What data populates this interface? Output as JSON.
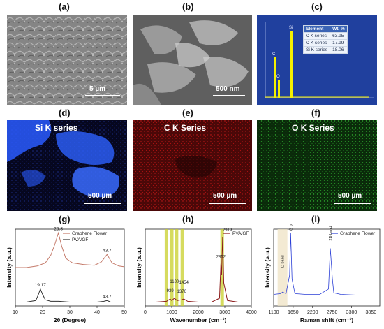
{
  "panels": {
    "a": "(a)",
    "b": "(b)",
    "c": "(c)",
    "d": "(d)",
    "e": "(e)",
    "f": "(f)",
    "g": "(g)",
    "h": "(h)",
    "i": "(i)"
  },
  "sem": {
    "a_scale": "5 µm",
    "b_scale": "500 nm"
  },
  "eds": {
    "headers": [
      "Element",
      "Wt. %"
    ],
    "rows": [
      {
        "element": "C K series",
        "wt": "63.95"
      },
      {
        "element": "O K series",
        "wt": "17.99"
      },
      {
        "element": "Si K series",
        "wt": "18.06"
      }
    ],
    "spectrum_peak_labels": [
      "C",
      "O",
      "Si"
    ]
  },
  "maps": {
    "d_title": "Si K series",
    "e_title": "C K Series",
    "f_title": "O K Series",
    "scale": "500 µm",
    "colors": {
      "d": "#2a5bff",
      "e": "#d11a1a",
      "f": "#2fae2f"
    }
  },
  "chart_data": [
    {
      "type": "line",
      "panel": "g",
      "xlabel": "2θ (Degree)",
      "ylabel": "Intensity (a.u.)",
      "xlim": [
        10,
        50
      ],
      "xticks": [
        10,
        20,
        30,
        40,
        50
      ],
      "series": [
        {
          "name": "Graphene Flower",
          "color": "#c47a6a",
          "x": [
            10,
            14,
            18,
            21,
            23,
            24.5,
            25.8,
            27,
            28.5,
            31,
            35,
            39,
            41.5,
            43.7,
            45.5,
            48,
            50
          ],
          "y": [
            0.5,
            0.5,
            0.52,
            0.56,
            0.66,
            0.8,
            0.95,
            0.78,
            0.62,
            0.56,
            0.54,
            0.53,
            0.57,
            0.67,
            0.56,
            0.52,
            0.51
          ]
        },
        {
          "name": "PVA/GF",
          "color": "#333333",
          "x": [
            10,
            14,
            17.5,
            18.5,
            19.17,
            20,
            21,
            23,
            26,
            30,
            35,
            40,
            42.5,
            43.7,
            45,
            50
          ],
          "y": [
            0.05,
            0.05,
            0.07,
            0.15,
            0.22,
            0.15,
            0.08,
            0.06,
            0.06,
            0.05,
            0.05,
            0.05,
            0.06,
            0.07,
            0.05,
            0.05
          ]
        }
      ],
      "annotations": [
        {
          "text": "25.8",
          "x": 25.8,
          "y": 0.95
        },
        {
          "text": "43.7",
          "x": 43.7,
          "y": 0.67
        },
        {
          "text": "19.17",
          "x": 19.17,
          "y": 0.22
        },
        {
          "text": "43.7",
          "x": 43.7,
          "y": 0.07
        }
      ],
      "legend": "top-right"
    },
    {
      "type": "line",
      "panel": "h",
      "xlabel": "Wavenumber (cm⁻¹)",
      "ylabel": "Intensity (a.u.)",
      "xlim": [
        0,
        4000
      ],
      "xticks": [
        0,
        1000,
        2000,
        3000,
        4000
      ],
      "series": [
        {
          "name": "PVA/GF",
          "color": "#8b1a1a",
          "x": [
            0,
            400,
            800,
            939,
            1000,
            1100,
            1200,
            1376,
            1454,
            1600,
            2000,
            2500,
            2800,
            2852,
            2880,
            2919,
            2960,
            3100,
            3500,
            4000
          ],
          "y": [
            0.05,
            0.05,
            0.06,
            0.09,
            0.07,
            0.1,
            0.07,
            0.08,
            0.09,
            0.06,
            0.05,
            0.05,
            0.1,
            0.55,
            0.4,
            0.9,
            0.3,
            0.07,
            0.05,
            0.05
          ]
        }
      ],
      "highlight_bands": [
        800,
        1000,
        1180,
        1400,
        2900
      ],
      "annotations": [
        {
          "text": "939",
          "x": 939
        },
        {
          "text": "1100",
          "x": 1100
        },
        {
          "text": "1376",
          "x": 1376
        },
        {
          "text": "1454",
          "x": 1454
        },
        {
          "text": "2852",
          "x": 2852
        },
        {
          "text": "2919",
          "x": 2919
        }
      ],
      "legend": "top-right"
    },
    {
      "type": "line",
      "panel": "i",
      "xlabel": "Raman shift (cm⁻¹)",
      "ylabel": "Intensity (a.u.)",
      "xlim": [
        1100,
        4100
      ],
      "xticks": [
        1100,
        1650,
        2200,
        2750,
        3300,
        3850
      ],
      "series": [
        {
          "name": "Graphene Flower",
          "color": "#2b3fd6",
          "x": [
            1100,
            1300,
            1350,
            1450,
            1550,
            1580,
            1620,
            1700,
            2000,
            2400,
            2650,
            2700,
            2760,
            2800,
            3000,
            3500,
            4100
          ],
          "y": [
            0.15,
            0.16,
            0.18,
            0.16,
            0.4,
            0.95,
            0.35,
            0.16,
            0.15,
            0.15,
            0.22,
            0.75,
            0.35,
            0.17,
            0.15,
            0.14,
            0.14
          ]
        }
      ],
      "highlight_bands": [
        1350
      ],
      "annotations": [
        {
          "text": "D band",
          "x": 1350
        },
        {
          "text": "G band",
          "x": 1580
        },
        {
          "text": "2D band",
          "x": 2700
        }
      ],
      "legend": "top-right"
    }
  ]
}
